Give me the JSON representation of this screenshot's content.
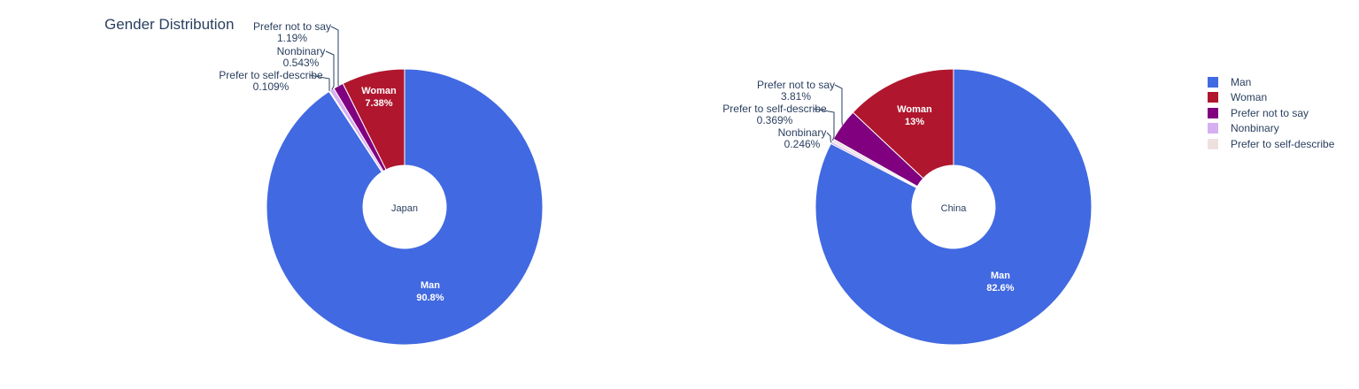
{
  "chart_data": {
    "type": "pie",
    "title": "Gender Distribution",
    "hole": true,
    "legend_position": "right",
    "categories": [
      "Man",
      "Woman",
      "Prefer not to say",
      "Nonbinary",
      "Prefer to self-describe"
    ],
    "colors": {
      "Man": "#4169e1",
      "Woman": "#b0172e",
      "Prefer not to say": "#800080",
      "Nonbinary": "#d5aff2",
      "Prefer to self-describe": "#efe0e0"
    },
    "pies": [
      {
        "name": "Japan",
        "slices": [
          {
            "label": "Woman",
            "value": 7.38,
            "text": "7.38%"
          },
          {
            "label": "Prefer not to say",
            "value": 1.19,
            "text": "1.19%"
          },
          {
            "label": "Nonbinary",
            "value": 0.543,
            "text": "0.543%"
          },
          {
            "label": "Prefer to self-describe",
            "value": 0.109,
            "text": "0.109%"
          },
          {
            "label": "Man",
            "value": 90.8,
            "text": "90.8%"
          }
        ]
      },
      {
        "name": "China",
        "slices": [
          {
            "label": "Woman",
            "value": 13,
            "text": "13%"
          },
          {
            "label": "Prefer not to say",
            "value": 3.81,
            "text": "3.81%"
          },
          {
            "label": "Prefer to self-describe",
            "value": 0.369,
            "text": "0.369%"
          },
          {
            "label": "Nonbinary",
            "value": 0.246,
            "text": "0.246%"
          },
          {
            "label": "Man",
            "value": 82.6,
            "text": "82.6%"
          }
        ]
      }
    ]
  }
}
